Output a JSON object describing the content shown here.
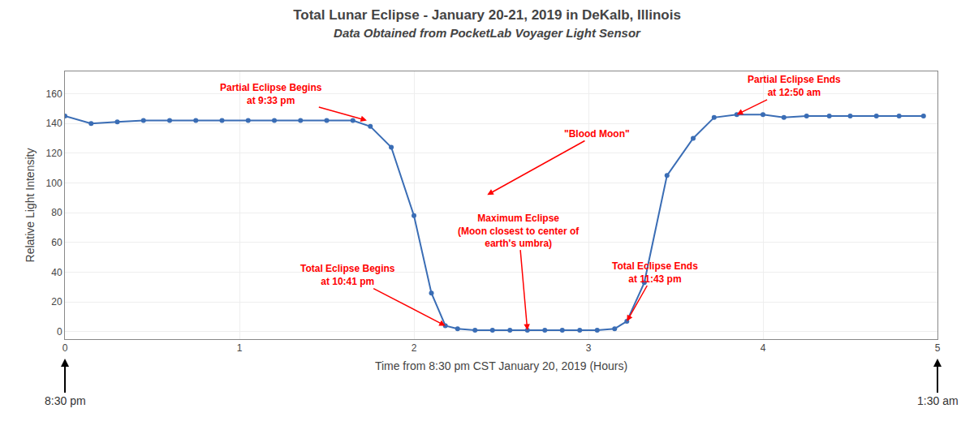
{
  "chart_data": {
    "type": "line",
    "title": "Total Lunar Eclipse - January 20-21, 2019 in DeKalb, Illinois",
    "subtitle": "Data Obtained from PocketLab Voyager Light Sensor",
    "x_label": "Time from 8:30 pm CST January 20, 2019 (Hours)",
    "y_label": "Relative Light Intensity",
    "x": [
      0.0,
      0.15,
      0.3,
      0.45,
      0.6,
      0.75,
      0.9,
      1.05,
      1.2,
      1.35,
      1.5,
      1.65,
      1.75,
      1.87,
      2.0,
      2.1,
      2.18,
      2.25,
      2.35,
      2.45,
      2.55,
      2.65,
      2.75,
      2.85,
      2.95,
      3.05,
      3.15,
      3.22,
      3.32,
      3.45,
      3.6,
      3.72,
      3.85,
      4.0,
      4.12,
      4.25,
      4.38,
      4.5,
      4.65,
      4.78,
      4.92
    ],
    "values": [
      145,
      140,
      141,
      142,
      142,
      142,
      142,
      142,
      142,
      142,
      142,
      142,
      138,
      124,
      78,
      26,
      4,
      2,
      1,
      1,
      1,
      1,
      1,
      1,
      1,
      1,
      2,
      7,
      33,
      105,
      130,
      144,
      146,
      146,
      144,
      145,
      145,
      145,
      145,
      145,
      145
    ],
    "color": "#3a6db5",
    "marker": "circle",
    "xlim": [
      0,
      5
    ],
    "ylim": [
      -5,
      175
    ],
    "xticks": [
      0,
      1,
      2,
      3,
      4,
      5
    ],
    "yticks": [
      0,
      20,
      40,
      60,
      80,
      100,
      120,
      140,
      160
    ],
    "grid": true,
    "annotations": [
      {
        "text": "Partial Eclipse Begins\nat 9:33 pm",
        "x": 1.73,
        "y": 142,
        "text_x": 1.18,
        "text_y": 160,
        "color": "red"
      },
      {
        "text": "Total Eclipse Begins\nat 10:41 pm",
        "x": 2.18,
        "y": 4,
        "text_x": 1.62,
        "text_y": 38,
        "color": "red"
      },
      {
        "text": "Maximum Eclipse\n(Moon closest to center of\nearth's umbra)",
        "x": 2.65,
        "y": 1,
        "text_x": 2.6,
        "text_y": 68,
        "color": "red"
      },
      {
        "text": "Total Eclipse Ends\nat 11:43 pm",
        "x": 3.22,
        "y": 7,
        "text_x": 3.38,
        "text_y": 40,
        "color": "red"
      },
      {
        "text": "Partial Eclipse Ends\nat 12:50 am",
        "x": 3.85,
        "y": 146,
        "text_x": 4.18,
        "text_y": 165,
        "color": "red"
      },
      {
        "text": "\"Blood Moon\"",
        "x": 2.42,
        "y": 92,
        "text_x": 3.05,
        "text_y": 133,
        "color": "red"
      }
    ],
    "axis_notes": [
      {
        "text": "8:30 pm",
        "x": 0
      },
      {
        "text": "1:30 am",
        "x": 5
      }
    ]
  }
}
